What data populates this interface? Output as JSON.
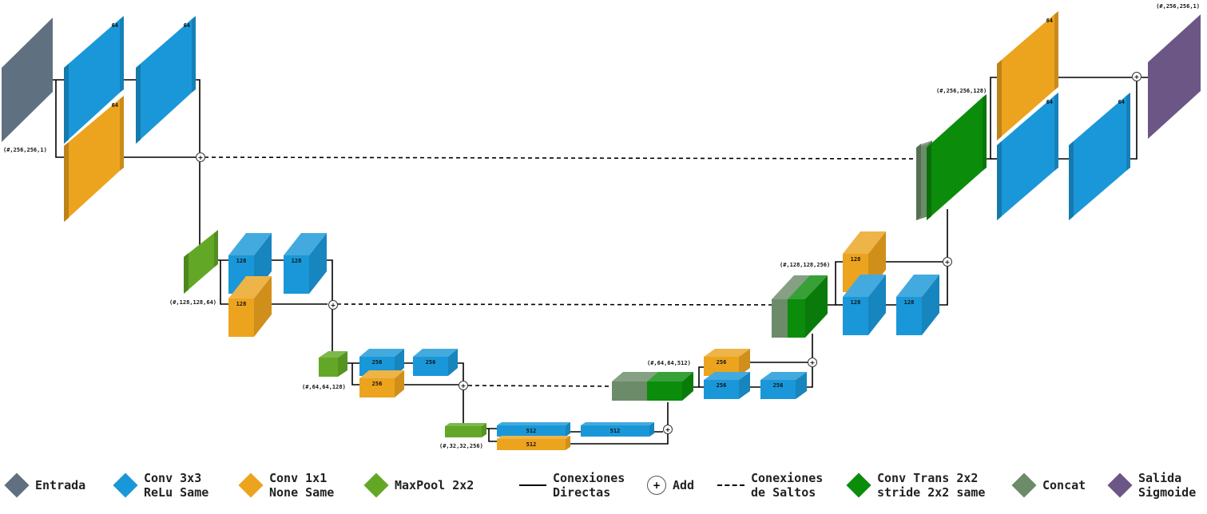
{
  "colors": {
    "entrada": "#5f7180",
    "conv3": "#1a97d8",
    "conv1": "#eca31e",
    "maxpool": "#62a826",
    "convtrans": "#0b8c0b",
    "concat": "#6b8b69",
    "salida": "#6c5686"
  },
  "block_labels": {
    "c64": "64",
    "c128": "128",
    "c256": "256",
    "c512": "512"
  },
  "dims": {
    "input": "(#,256,256,1)",
    "pool1": "(#,128,128,64)",
    "pool2": "(#,64,64,128)",
    "pool3": "(#,32,32,256)",
    "up1": "(#,64,64,512)",
    "up2": "(#,128,128,256)",
    "up3": "(#,256,256,128)",
    "output": "(#,256,256,1)"
  },
  "add_symbol": "+",
  "legend": {
    "entrada": "Entrada",
    "conv3": "Conv 3x3\nReLu Same",
    "conv1": "Conv 1x1\nNone Same",
    "maxpool": "MaxPool 2x2",
    "directas": "Conexiones\nDirectas",
    "add_symbol": "+",
    "add": "Add",
    "saltos": "Conexiones\nde Saltos",
    "convtrans": "Conv Trans 2x2\nstride 2x2 same",
    "concat": "Concat",
    "salida": "Salida\nSigmoide"
  }
}
